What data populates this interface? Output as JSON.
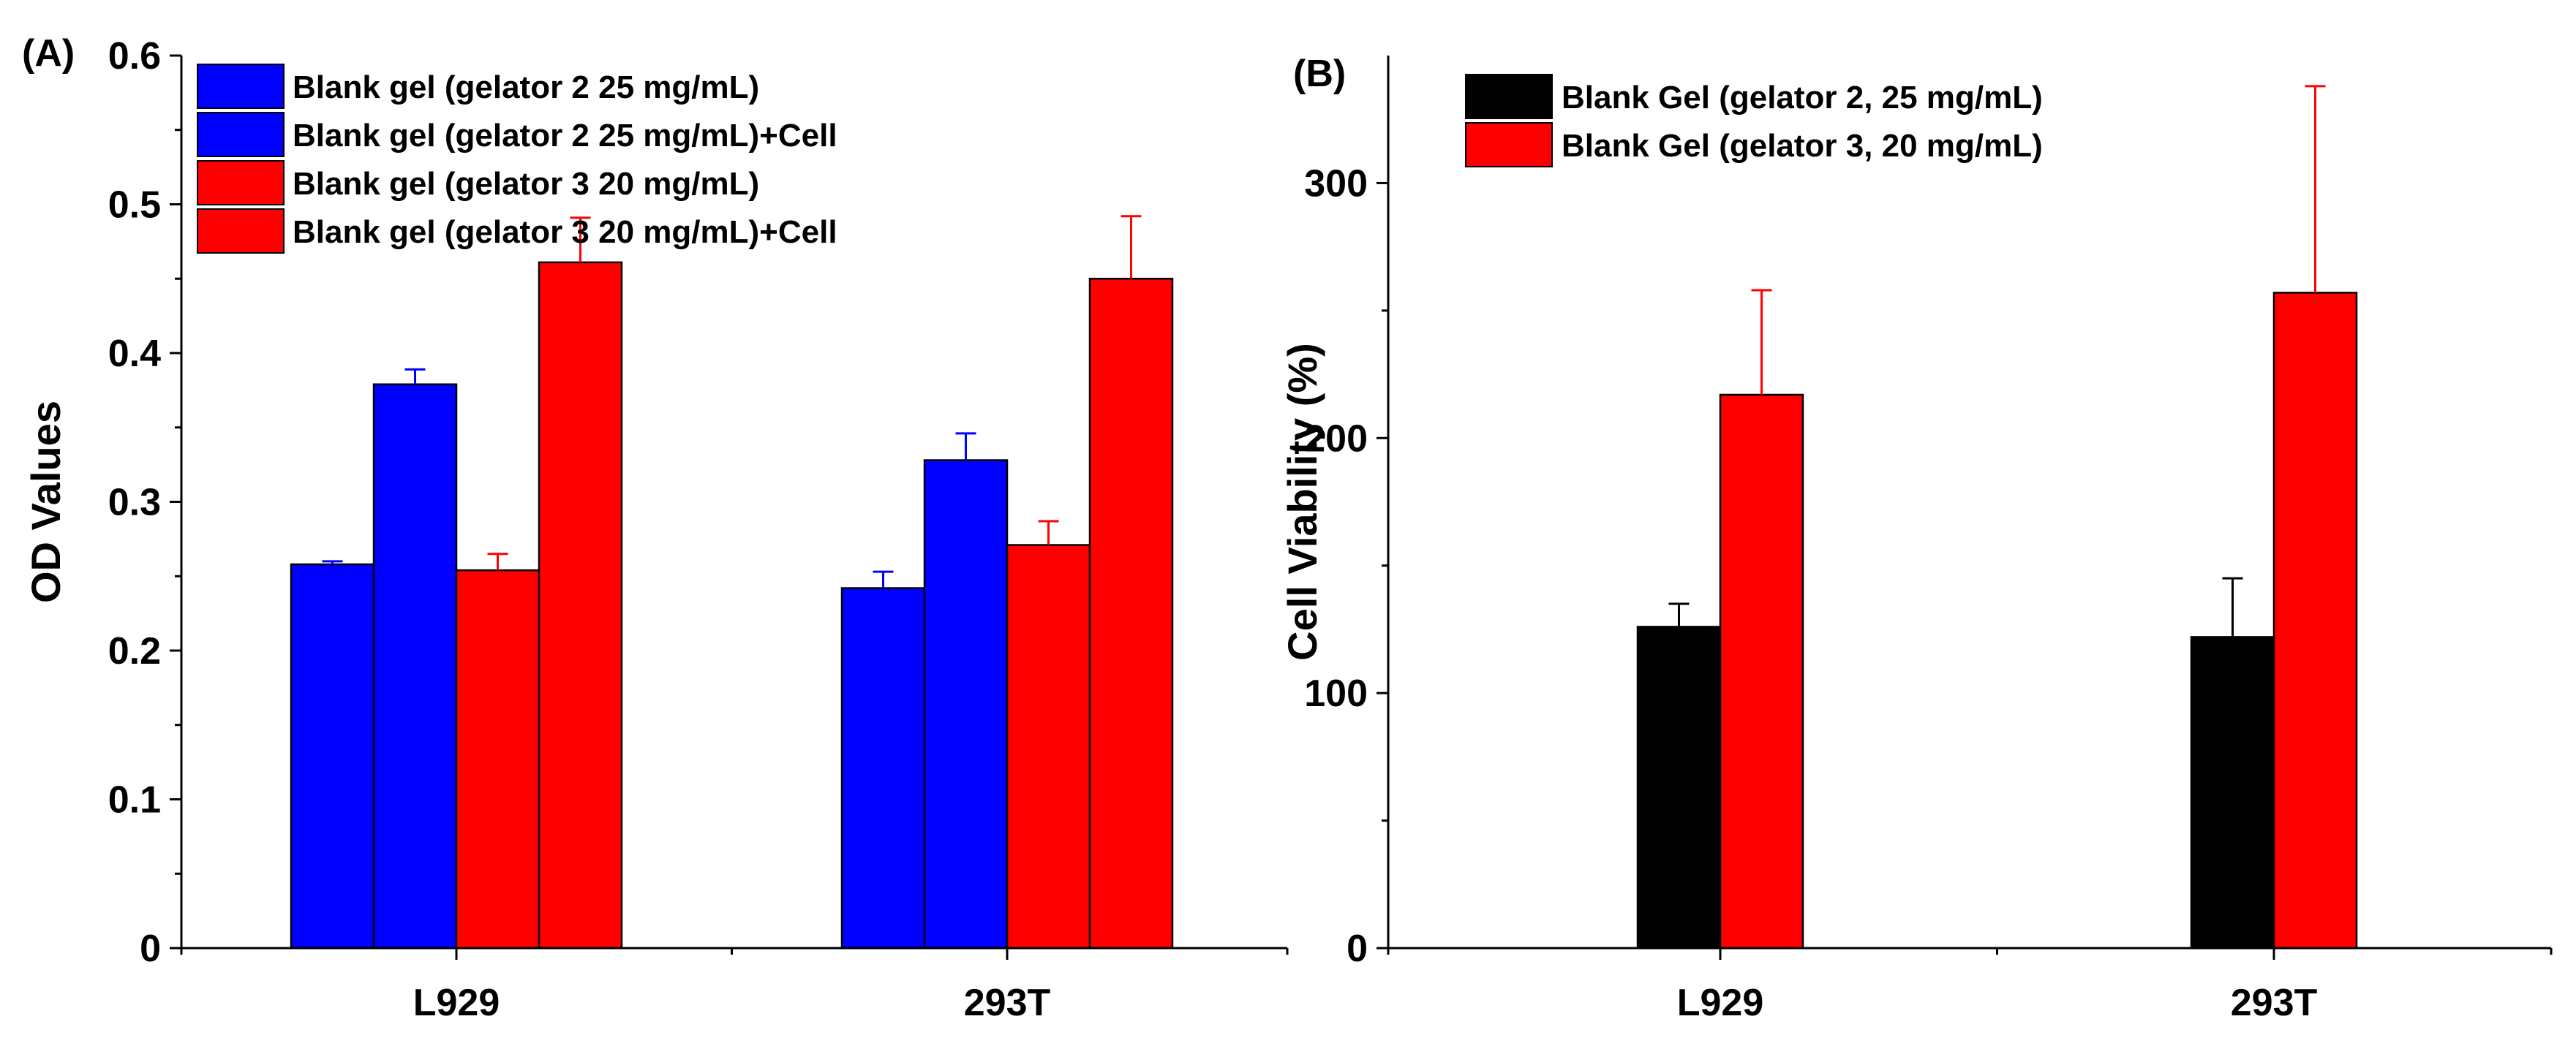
{
  "chart_data": [
    {
      "panel": "(A)",
      "type": "bar",
      "title": "",
      "xlabel": "",
      "ylabel": "OD Values",
      "ylim": [
        0,
        0.6
      ],
      "yticks": [
        0,
        0.1,
        0.2,
        0.3,
        0.4,
        0.5,
        0.6
      ],
      "ytick_labels": [
        "0",
        "0.1",
        "0.2",
        "0.3",
        "0.4",
        "0.5",
        "0.6"
      ],
      "categories": [
        "L929",
        "293T"
      ],
      "series": [
        {
          "name": "Blank gel (gelator 2 25 mg/mL)",
          "color": "#0000ff",
          "values": [
            0.258,
            0.242
          ],
          "errors": [
            0.002,
            0.011
          ]
        },
        {
          "name": "Blank gel (gelator 2 25 mg/mL)+Cell",
          "color": "#0000ff",
          "values": [
            0.379,
            0.328
          ],
          "errors": [
            0.01,
            0.018
          ]
        },
        {
          "name": "Blank gel (gelator 3 20 mg/mL)",
          "color": "#ff0000",
          "values": [
            0.254,
            0.271
          ],
          "errors": [
            0.011,
            0.016
          ]
        },
        {
          "name": "Blank gel (gelator 3 20 mg/mL)+Cell",
          "color": "#ff0000",
          "values": [
            0.461,
            0.45
          ],
          "errors": [
            0.03,
            0.042
          ]
        }
      ],
      "legend_position": "top-left",
      "grid": false
    },
    {
      "panel": "(B)",
      "type": "bar",
      "title": "",
      "xlabel": "",
      "ylabel": "Cell Viability (%)",
      "ylim": [
        0,
        350
      ],
      "yticks": [
        0,
        100,
        200,
        300
      ],
      "ytick_labels": [
        "0",
        "100",
        "200",
        "300"
      ],
      "categories": [
        "L929",
        "293T"
      ],
      "series": [
        {
          "name": "Blank Gel (gelator 2, 25 mg/mL)",
          "color": "#000000",
          "values": [
            126,
            122
          ],
          "errors": [
            9,
            23
          ]
        },
        {
          "name": "Blank Gel (gelator 3, 20 mg/mL)",
          "color": "#ff0000",
          "values": [
            217,
            257
          ],
          "errors": [
            41,
            81
          ]
        }
      ],
      "legend_position": "top-left",
      "grid": false
    }
  ]
}
